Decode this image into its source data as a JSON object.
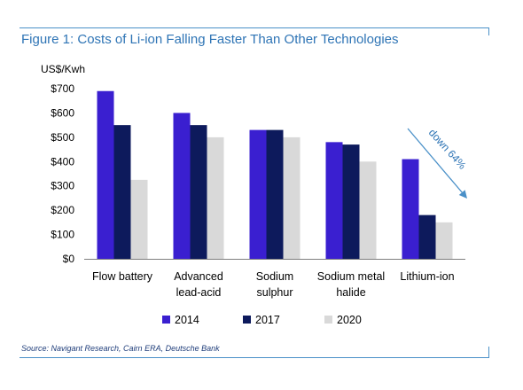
{
  "figure": {
    "title": "Figure 1: Costs of Li-ion Falling Faster Than Other Technologies",
    "source": "Source: Navigant Research, Cairn ERA, Deutsche Bank"
  },
  "chart_data": {
    "type": "bar",
    "title": "Figure 1: Costs of Li-ion Falling Faster Than Other Technologies",
    "ylabel": "US$/Kwh",
    "xlabel": "",
    "ylim": [
      0,
      700
    ],
    "yticks": [
      0,
      100,
      200,
      300,
      400,
      500,
      600,
      700
    ],
    "ytick_labels": [
      "$0",
      "$100",
      "$200",
      "$300",
      "$400",
      "$500",
      "$600",
      "$700"
    ],
    "grid": false,
    "legend_position": "bottom",
    "categories": [
      [
        "Flow battery"
      ],
      [
        "Advanced",
        "lead-acid"
      ],
      [
        "Sodium",
        "sulphur"
      ],
      [
        "Sodium metal",
        "halide"
      ],
      [
        "Lithium-ion"
      ]
    ],
    "series": [
      {
        "name": "2014",
        "color": "#3a1fd0",
        "values": [
          690,
          600,
          530,
          480,
          410
        ]
      },
      {
        "name": "2017",
        "color": "#0d1a5c",
        "values": [
          550,
          550,
          530,
          470,
          180
        ]
      },
      {
        "name": "2020",
        "color": "#d9d9d9",
        "values": [
          325,
          500,
          500,
          400,
          150
        ]
      }
    ],
    "annotation": {
      "text": "down 64%",
      "color": "#2e74b5",
      "arrow_color": "#4a90c8"
    }
  }
}
